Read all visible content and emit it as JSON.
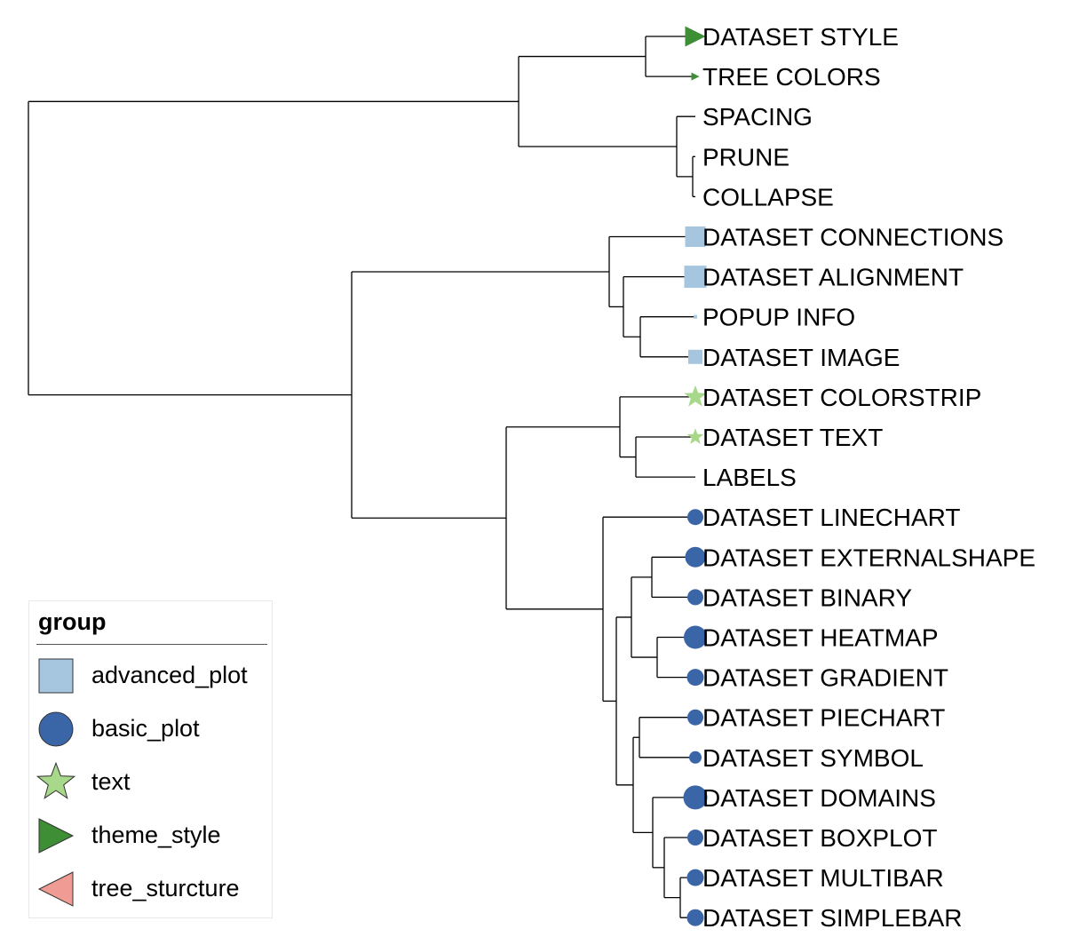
{
  "groups": {
    "advanced_plot": {
      "label": "advanced_plot",
      "color": "#a6c6e0",
      "shape": "square-icon"
    },
    "basic_plot": {
      "label": "basic_plot",
      "color": "#3a66a7",
      "shape": "circle-icon"
    },
    "text": {
      "label": "text",
      "color": "#a8d88a",
      "shape": "star-icon"
    },
    "theme_style": {
      "label": "theme_style",
      "color": "#3e8e35",
      "shape": "triangle-right-icon"
    },
    "tree_sturcture": {
      "label": "tree_sturcture",
      "color": "#f09c94",
      "shape": "triangle-left-icon"
    }
  },
  "legend": {
    "title": "group",
    "items": [
      "advanced_plot",
      "basic_plot",
      "text",
      "theme_style",
      "tree_sturcture"
    ]
  },
  "tree": {
    "leaves": [
      {
        "label": "DATASET STYLE",
        "group": "theme_style",
        "size": 1.0
      },
      {
        "label": "TREE COLORS",
        "group": "theme_style",
        "size": 0.3
      },
      {
        "label": "SPACING",
        "group": null,
        "size": 0
      },
      {
        "label": "PRUNE",
        "group": null,
        "size": 0
      },
      {
        "label": "COLLAPSE",
        "group": null,
        "size": 0
      },
      {
        "label": "DATASET CONNECTIONS",
        "group": "advanced_plot",
        "size": 1.0
      },
      {
        "label": "DATASET ALIGNMENT",
        "group": "advanced_plot",
        "size": 1.1
      },
      {
        "label": "POPUP INFO",
        "group": "advanced_plot",
        "size": 0.05
      },
      {
        "label": "DATASET IMAGE",
        "group": "advanced_plot",
        "size": 0.65
      },
      {
        "label": "DATASET COLORSTRIP",
        "group": "text",
        "size": 1.0
      },
      {
        "label": "DATASET TEXT",
        "group": "text",
        "size": 0.7
      },
      {
        "label": "LABELS",
        "group": null,
        "size": 0
      },
      {
        "label": "DATASET LINECHART",
        "group": "basic_plot",
        "size": 0.75
      },
      {
        "label": "DATASET EXTERNALSHAPE",
        "group": "basic_plot",
        "size": 1.0
      },
      {
        "label": "DATASET BINARY",
        "group": "basic_plot",
        "size": 0.75
      },
      {
        "label": "DATASET HEATMAP",
        "group": "basic_plot",
        "size": 1.15
      },
      {
        "label": "DATASET GRADIENT",
        "group": "basic_plot",
        "size": 0.8
      },
      {
        "label": "DATASET PIECHART",
        "group": "basic_plot",
        "size": 0.75
      },
      {
        "label": "DATASET SYMBOL",
        "group": "basic_plot",
        "size": 0.55
      },
      {
        "label": "DATASET DOMAINS",
        "group": "basic_plot",
        "size": 1.2
      },
      {
        "label": "DATASET BOXPLOT",
        "group": "basic_plot",
        "size": 0.75
      },
      {
        "label": "DATASET MULTIBAR",
        "group": "basic_plot",
        "size": 0.8
      },
      {
        "label": "DATASET SIMPLEBAR",
        "group": "basic_plot",
        "size": 0.8
      }
    ]
  }
}
